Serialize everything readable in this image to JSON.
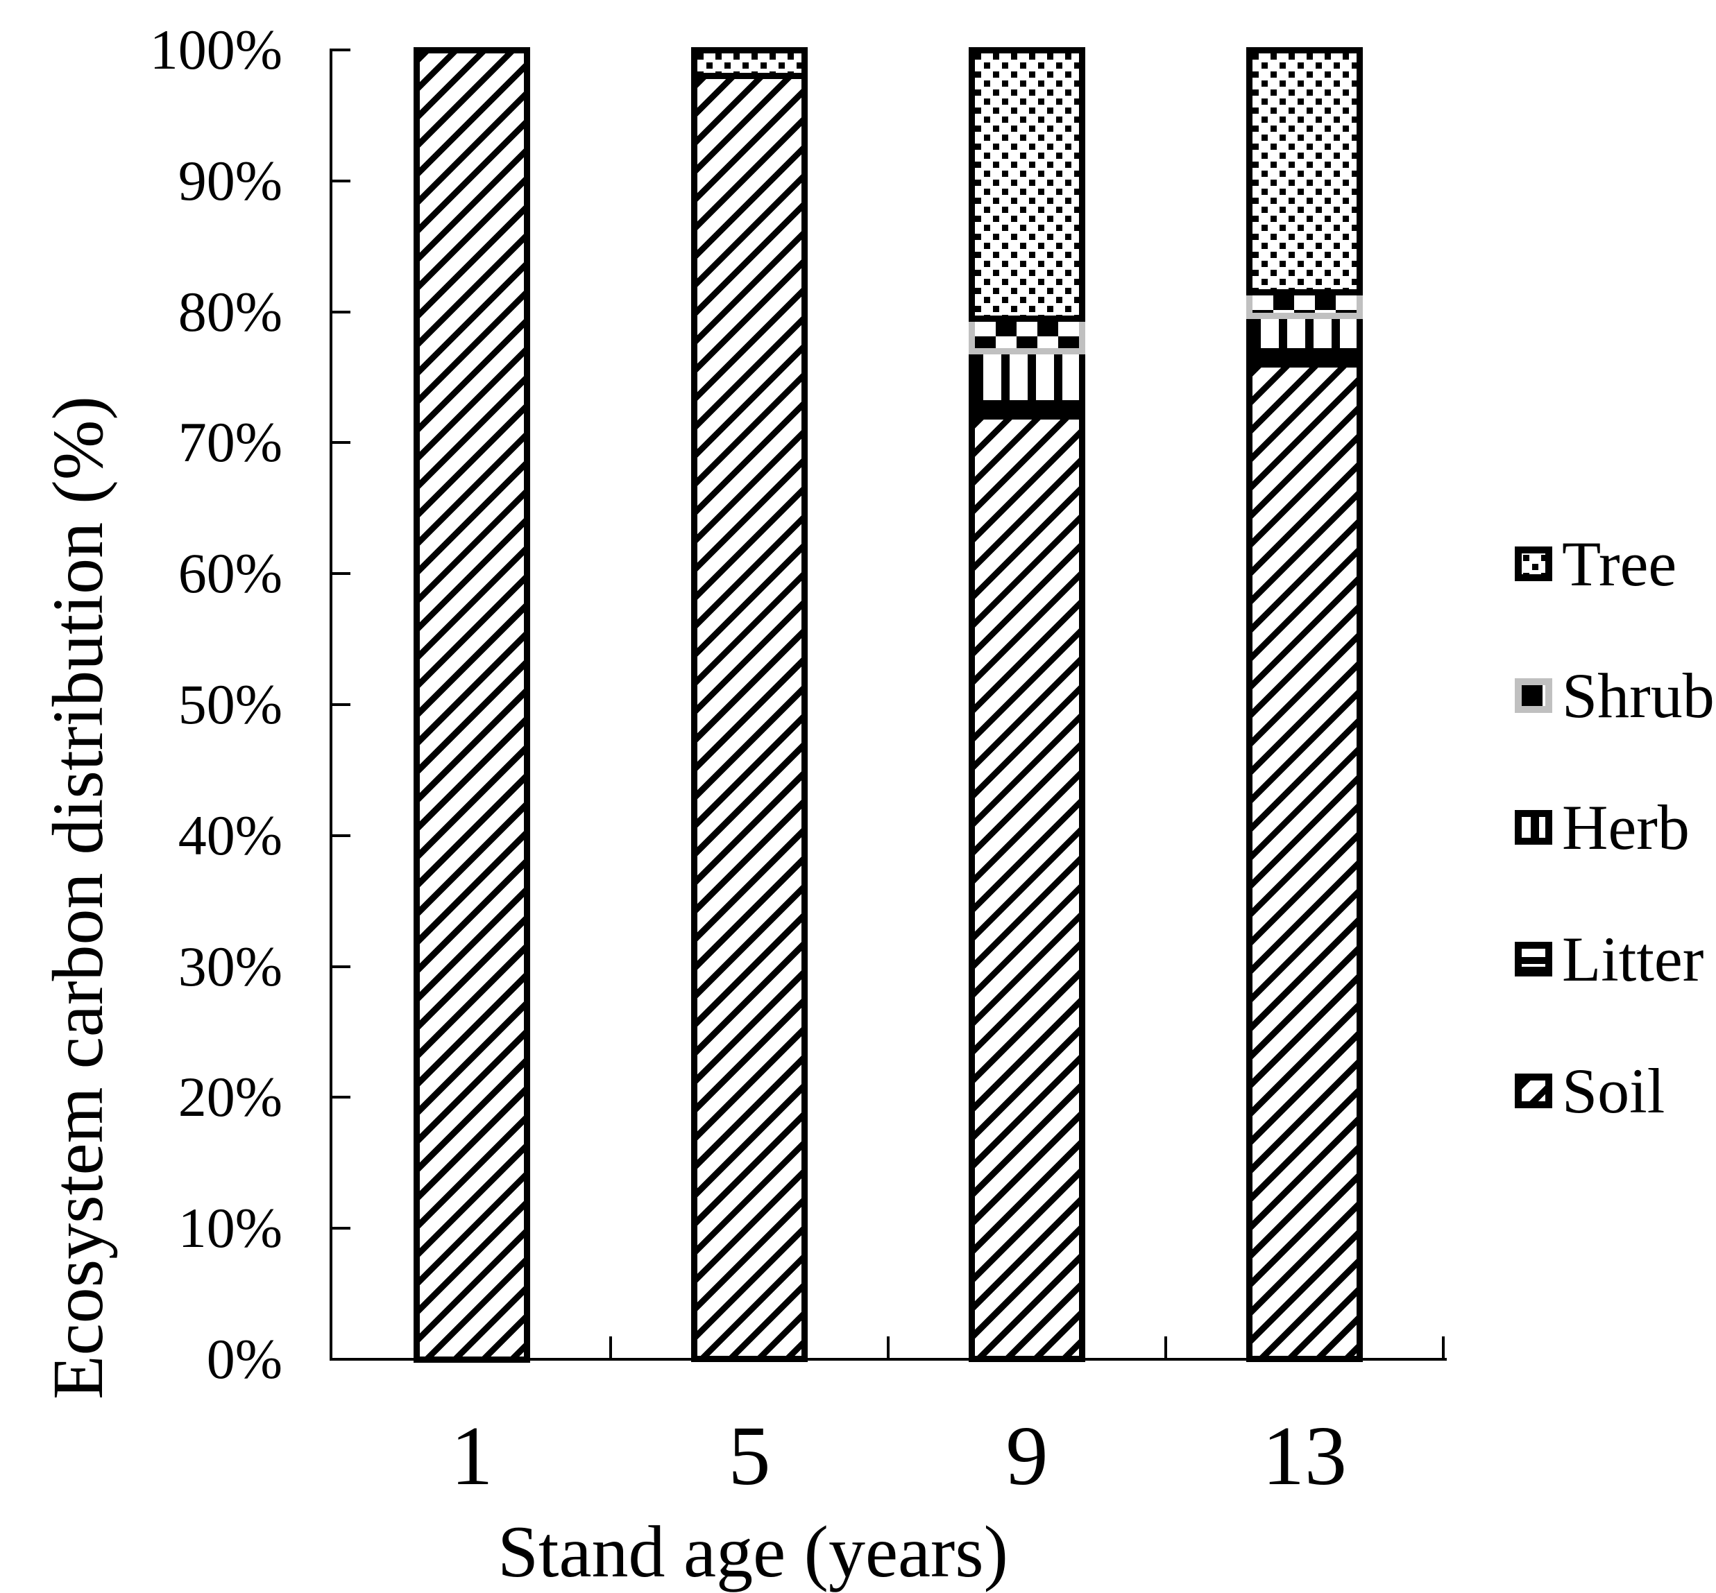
{
  "chart_data": {
    "type": "bar",
    "stacked": true,
    "orientation": "vertical",
    "categories": [
      "1",
      "5",
      "9",
      "13"
    ],
    "series": [
      {
        "name": "Soil",
        "pattern": "soil",
        "values": [
          100,
          98,
          72,
          76
        ]
      },
      {
        "name": "Litter",
        "pattern": "litter",
        "values": [
          0,
          0,
          1,
          1
        ]
      },
      {
        "name": "Herb",
        "pattern": "herb",
        "values": [
          0,
          0,
          4,
          2.7
        ]
      },
      {
        "name": "Shrub",
        "pattern": "shrub",
        "values": [
          0,
          0,
          2.5,
          1.8
        ]
      },
      {
        "name": "Tree",
        "pattern": "tree",
        "values": [
          0,
          2,
          20.5,
          18.5
        ]
      }
    ],
    "xlabel": "Stand age (years)",
    "ylabel": "Ecosystem carbon distribution (%)",
    "ylim": [
      0,
      100
    ],
    "ytick_labels": [
      "0%",
      "10%",
      "20%",
      "30%",
      "40%",
      "50%",
      "60%",
      "70%",
      "80%",
      "90%",
      "100%"
    ],
    "grid": false,
    "legend": {
      "position": "right",
      "entries": [
        "Tree",
        "Shrub",
        "Herb",
        "Litter",
        "Soil"
      ]
    },
    "colors": {
      "foreground": "#000000",
      "background": "#ffffff",
      "shrub_border": "#c0c0c0"
    }
  }
}
